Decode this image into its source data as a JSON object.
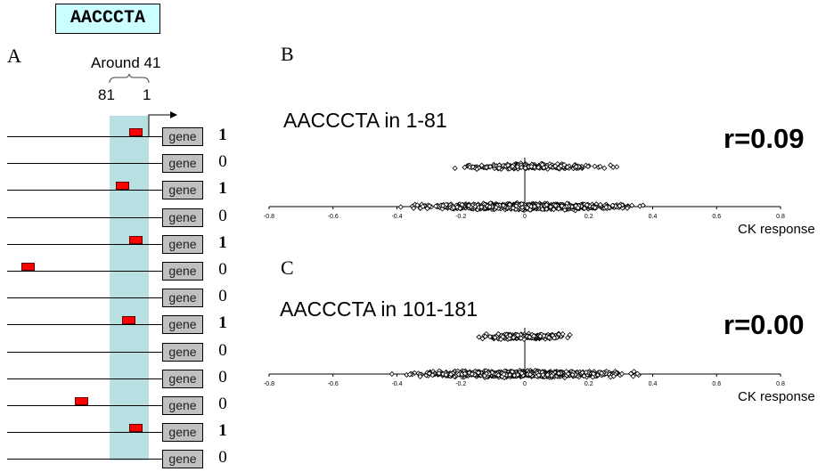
{
  "motif_label": "AACCCTA",
  "panel_a": {
    "letter": "A",
    "region_label": "Around 41",
    "pos_left": "81",
    "pos_right": "1",
    "gene_label": "gene",
    "rows": [
      {
        "score": "1",
        "motif_pos": 0.33
      },
      {
        "score": "0",
        "motif_pos": null
      },
      {
        "score": "1",
        "motif_pos": 0.5
      },
      {
        "score": "0",
        "motif_pos": null
      },
      {
        "score": "1",
        "motif_pos": 0.33
      },
      {
        "score": "0",
        "motif_pos": "upstream-far"
      },
      {
        "score": "0",
        "motif_pos": null
      },
      {
        "score": "1",
        "motif_pos": 0.42
      },
      {
        "score": "0",
        "motif_pos": null
      },
      {
        "score": "0",
        "motif_pos": null
      },
      {
        "score": "0",
        "motif_pos": "upstream-mid"
      },
      {
        "score": "1",
        "motif_pos": 0.33
      },
      {
        "score": "0",
        "motif_pos": null
      }
    ]
  },
  "chart_data": [
    {
      "type": "scatter",
      "letter": "B",
      "title": "AACCCTA in 1-81",
      "annotation": "r=0.09",
      "xlabel": "CK response",
      "xlim": [
        -0.8,
        0.8
      ],
      "xticks": [
        "-0.8",
        "-0.6",
        "-0.4",
        "-0.2",
        "0",
        "0.2",
        "0.4",
        "0.6",
        "0.8"
      ],
      "groups": [
        {
          "y": 1,
          "x_range": [
            -0.35,
            0.56
          ],
          "center": 0.02
        },
        {
          "y": 0,
          "x_range": [
            -0.7,
            0.7
          ],
          "center": 0.0
        }
      ]
    },
    {
      "type": "scatter",
      "letter": "C",
      "title": "AACCCTA in 101-181",
      "annotation": "r=0.00",
      "xlabel": "CK response",
      "xlim": [
        -0.8,
        0.8
      ],
      "xticks": [
        "-0.8",
        "-0.6",
        "-0.4",
        "-0.2",
        "0",
        "0.2",
        "0.4",
        "0.6",
        "0.8"
      ],
      "groups": [
        {
          "y": 1,
          "x_range": [
            -0.27,
            0.33
          ],
          "center": 0.0
        },
        {
          "y": 0,
          "x_range": [
            -0.7,
            0.7
          ],
          "center": 0.0
        }
      ]
    }
  ]
}
